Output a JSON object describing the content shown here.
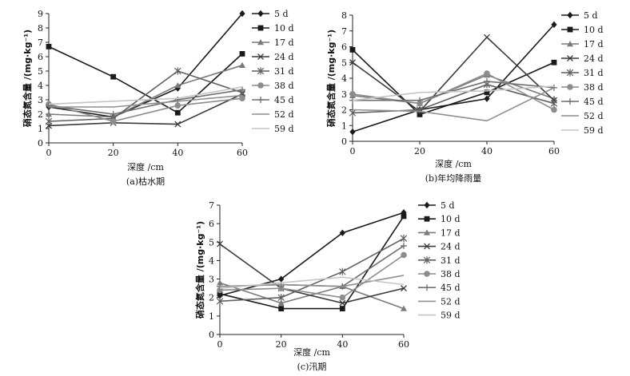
{
  "chart_data": [
    {
      "type": "line",
      "caption": "(a)枯水期",
      "xlabel": "深度 /cm",
      "ylabel": "硝态氮含量 /(mg·kg⁻¹)",
      "x": [
        0,
        20,
        40,
        60
      ],
      "xticks": [
        "0",
        "20",
        "40",
        "60"
      ],
      "ylim": [
        0,
        9
      ],
      "yticks": [
        "0",
        "1",
        "2",
        "3",
        "4",
        "5",
        "6",
        "7",
        "8",
        "9"
      ],
      "series": [
        {
          "name": "5 d",
          "values": [
            2.5,
            1.8,
            3.8,
            9.0
          ]
        },
        {
          "name": "10 d",
          "values": [
            6.7,
            4.6,
            2.1,
            6.2
          ]
        },
        {
          "name": "17 d",
          "values": [
            2.0,
            1.8,
            4.0,
            5.4
          ]
        },
        {
          "name": "24 d",
          "values": [
            1.2,
            1.4,
            1.3,
            3.4
          ]
        },
        {
          "name": "31 d",
          "values": [
            1.5,
            1.7,
            5.0,
            3.5
          ]
        },
        {
          "name": "38 d",
          "values": [
            2.7,
            1.5,
            2.6,
            3.1
          ]
        },
        {
          "name": "45 d",
          "values": [
            2.6,
            2.0,
            3.0,
            3.7
          ]
        },
        {
          "name": "52 d",
          "values": [
            2.5,
            2.5,
            2.9,
            3.3
          ]
        },
        {
          "name": "59 d",
          "values": [
            2.7,
            2.9,
            3.1,
            3.9
          ]
        }
      ]
    },
    {
      "type": "line",
      "caption": "(b)年均降雨量",
      "xlabel": "深度 /cm",
      "ylabel": "硝态氮含量 /(mg·kg⁻¹)",
      "x": [
        0,
        20,
        40,
        60
      ],
      "xticks": [
        "0",
        "20",
        "40",
        "60"
      ],
      "ylim": [
        0,
        8
      ],
      "yticks": [
        "0",
        "1",
        "2",
        "3",
        "4",
        "5",
        "6",
        "7",
        "8"
      ],
      "series": [
        {
          "name": "5 d",
          "values": [
            0.6,
            2.0,
            2.7,
            7.4
          ]
        },
        {
          "name": "10 d",
          "values": [
            5.8,
            1.7,
            3.1,
            5.0
          ]
        },
        {
          "name": "17 d",
          "values": [
            2.9,
            2.4,
            4.2,
            2.7
          ]
        },
        {
          "name": "24 d",
          "values": [
            5.0,
            1.9,
            6.6,
            2.6
          ]
        },
        {
          "name": "31 d",
          "values": [
            1.8,
            2.0,
            3.6,
            2.4
          ]
        },
        {
          "name": "38 d",
          "values": [
            3.0,
            2.4,
            4.3,
            2.0
          ]
        },
        {
          "name": "45 d",
          "values": [
            2.6,
            2.6,
            3.8,
            3.4
          ]
        },
        {
          "name": "52 d",
          "values": [
            2.0,
            1.9,
            1.3,
            3.4
          ]
        },
        {
          "name": "59 d",
          "values": [
            2.6,
            3.1,
            3.2,
            3.5
          ]
        }
      ]
    },
    {
      "type": "line",
      "caption": "(c)汛期",
      "xlabel": "深度 /cm",
      "ylabel": "硝态氮含量 /(mg·kg⁻¹)",
      "x": [
        0,
        20,
        40,
        60
      ],
      "xticks": [
        "0",
        "20",
        "40",
        "60"
      ],
      "ylim": [
        0,
        7
      ],
      "yticks": [
        "0",
        "1",
        "2",
        "3",
        "4",
        "5",
        "6",
        "7"
      ],
      "series": [
        {
          "name": "5 d",
          "values": [
            2.1,
            3.0,
            5.5,
            6.6
          ]
        },
        {
          "name": "10 d",
          "values": [
            2.2,
            1.4,
            1.4,
            6.4
          ]
        },
        {
          "name": "17 d",
          "values": [
            2.8,
            1.7,
            2.6,
            1.4
          ]
        },
        {
          "name": "24 d",
          "values": [
            4.9,
            2.5,
            1.7,
            2.5
          ]
        },
        {
          "name": "31 d",
          "values": [
            1.8,
            2.0,
            3.4,
            5.2
          ]
        },
        {
          "name": "38 d",
          "values": [
            2.4,
            2.5,
            2.0,
            4.3
          ]
        },
        {
          "name": "45 d",
          "values": [
            2.6,
            2.7,
            2.6,
            4.8
          ]
        },
        {
          "name": "52 d",
          "values": [
            2.6,
            2.7,
            2.6,
            3.2
          ]
        },
        {
          "name": "59 d",
          "values": [
            2.5,
            2.8,
            3.1,
            2.7
          ]
        }
      ]
    }
  ],
  "series_style": {
    "5 d": {
      "color": "#1a1a1a",
      "marker": "diamond"
    },
    "10 d": {
      "color": "#1a1a1a",
      "marker": "square"
    },
    "17 d": {
      "color": "#7a7a7a",
      "marker": "triangle"
    },
    "24 d": {
      "color": "#3a3a3a",
      "marker": "x"
    },
    "31 d": {
      "color": "#5f5f5f",
      "marker": "star"
    },
    "38 d": {
      "color": "#8c8c8c",
      "marker": "circle"
    },
    "45 d": {
      "color": "#6e6e6e",
      "marker": "plus"
    },
    "52 d": {
      "color": "#8f8f8f",
      "marker": "none"
    },
    "59 d": {
      "color": "#c4c4c4",
      "marker": "none"
    }
  }
}
